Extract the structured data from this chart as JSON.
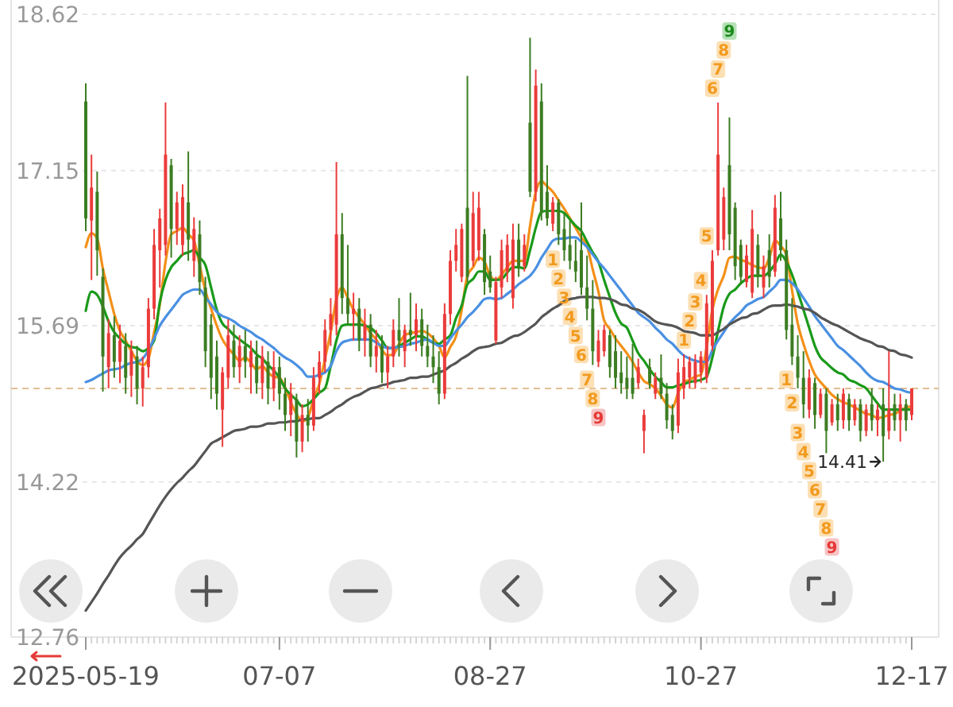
{
  "chart_data": {
    "type": "candlestick",
    "categories": [
      "2025-05-19",
      null,
      null,
      null,
      null,
      null,
      null,
      null,
      null,
      null,
      null,
      null,
      null,
      null,
      null,
      null,
      null,
      null,
      null,
      null,
      null,
      null,
      null,
      null,
      null,
      null,
      null,
      null,
      null,
      null,
      null,
      null,
      null,
      null,
      "07-07",
      null,
      null,
      null,
      null,
      null,
      null,
      null,
      null,
      null,
      null,
      null,
      null,
      null,
      null,
      null,
      null,
      null,
      null,
      null,
      null,
      null,
      null,
      null,
      null,
      null,
      null,
      null,
      null,
      null,
      null,
      null,
      null,
      null,
      null,
      null,
      null,
      "08-27",
      null,
      null,
      null,
      null,
      null,
      null,
      null,
      null,
      null,
      null,
      null,
      null,
      null,
      null,
      null,
      null,
      null,
      null,
      null,
      null,
      null,
      null,
      null,
      null,
      null,
      null,
      null,
      null,
      null,
      null,
      null,
      null,
      null,
      null,
      null,
      null,
      "10-27",
      null,
      null,
      null,
      null,
      null,
      null,
      null,
      null,
      null,
      null,
      null,
      null,
      null,
      null,
      null,
      null,
      null,
      null,
      null,
      null,
      null,
      null,
      null,
      null,
      null,
      null,
      null,
      null,
      null,
      null,
      null,
      null,
      null,
      null,
      null,
      null,
      "12-17"
    ],
    "ohlc": [
      [
        17.8,
        17.97,
        16.58,
        16.7
      ],
      [
        16.68,
        17.3,
        16.12,
        16.99
      ],
      [
        16.95,
        17.14,
        16.16,
        16.4
      ],
      [
        16.15,
        16.23,
        15.07,
        15.4
      ],
      [
        15.3,
        15.75,
        15.1,
        15.62
      ],
      [
        15.6,
        15.78,
        15.2,
        15.35
      ],
      [
        15.35,
        15.7,
        15.15,
        15.55
      ],
      [
        15.5,
        15.62,
        15.05,
        15.2
      ],
      [
        15.22,
        15.55,
        15.02,
        15.45
      ],
      [
        15.4,
        15.5,
        14.95,
        15.1
      ],
      [
        15.1,
        15.4,
        14.93,
        15.3
      ],
      [
        15.3,
        15.95,
        15.2,
        15.85
      ],
      [
        15.85,
        16.6,
        15.75,
        16.45
      ],
      [
        16.4,
        16.79,
        16.05,
        16.7
      ],
      [
        16.45,
        17.79,
        16.35,
        17.3
      ],
      [
        17.2,
        17.26,
        16.33,
        16.6
      ],
      [
        16.6,
        16.95,
        16.45,
        16.85
      ],
      [
        16.45,
        17.02,
        16.35,
        16.9
      ],
      [
        16.85,
        17.33,
        16.3,
        16.5
      ],
      [
        16.3,
        16.71,
        16.15,
        16.6
      ],
      [
        16.55,
        16.68,
        15.98,
        16.1
      ],
      [
        16.05,
        16.15,
        15.3,
        15.45
      ],
      [
        15.7,
        15.8,
        15.0,
        15.2
      ],
      [
        15.4,
        15.55,
        14.9,
        15.05
      ],
      [
        14.9,
        15.3,
        14.55,
        15.25
      ],
      [
        15.2,
        15.75,
        15.1,
        15.6
      ],
      [
        15.55,
        15.7,
        15.2,
        15.3
      ],
      [
        15.3,
        15.6,
        15.15,
        15.5
      ],
      [
        15.5,
        15.65,
        15.2,
        15.35
      ],
      [
        15.3,
        15.55,
        15.05,
        15.45
      ],
      [
        15.4,
        15.55,
        15.05,
        15.15
      ],
      [
        15.15,
        15.5,
        15.0,
        15.4
      ],
      [
        15.35,
        15.45,
        14.95,
        15.1
      ],
      [
        15.1,
        15.45,
        14.98,
        15.3
      ],
      [
        15.3,
        15.4,
        14.9,
        15.05
      ],
      [
        15.05,
        15.2,
        14.7,
        14.85
      ],
      [
        14.85,
        15.15,
        14.65,
        15.05
      ],
      [
        15.0,
        15.05,
        14.45,
        14.6
      ],
      [
        14.6,
        14.95,
        14.5,
        14.85
      ],
      [
        14.85,
        15.0,
        14.6,
        14.75
      ],
      [
        14.75,
        15.3,
        14.7,
        15.2
      ],
      [
        15.2,
        15.45,
        15.05,
        15.35
      ],
      [
        15.35,
        15.75,
        15.25,
        15.65
      ],
      [
        15.65,
        15.95,
        15.5,
        15.8
      ],
      [
        15.7,
        17.23,
        15.6,
        16.55
      ],
      [
        16.55,
        16.75,
        15.8,
        15.95
      ],
      [
        15.95,
        16.45,
        15.7,
        15.8
      ],
      [
        15.8,
        16.0,
        15.55,
        15.85
      ],
      [
        15.85,
        15.95,
        15.45,
        15.55
      ],
      [
        15.55,
        15.85,
        15.4,
        15.7
      ],
      [
        15.7,
        15.8,
        15.3,
        15.4
      ],
      [
        15.4,
        15.65,
        15.25,
        15.5
      ],
      [
        15.5,
        15.6,
        15.15,
        15.25
      ],
      [
        15.25,
        15.5,
        15.1,
        15.4
      ],
      [
        15.4,
        15.75,
        15.3,
        15.65
      ],
      [
        15.65,
        15.95,
        15.4,
        15.55
      ],
      [
        15.45,
        15.7,
        15.3,
        15.65
      ],
      [
        15.65,
        16.0,
        15.5,
        15.6
      ],
      [
        15.6,
        15.9,
        15.45,
        15.75
      ],
      [
        15.75,
        15.85,
        15.4,
        15.5
      ],
      [
        15.5,
        15.7,
        15.3,
        15.4
      ],
      [
        15.4,
        15.6,
        15.15,
        15.3
      ],
      [
        15.3,
        15.45,
        14.95,
        15.05
      ],
      [
        15.05,
        15.9,
        15.0,
        15.8
      ],
      [
        15.8,
        16.4,
        15.7,
        16.3
      ],
      [
        16.3,
        16.6,
        16.2,
        16.45
      ],
      [
        16.15,
        16.65,
        16.1,
        16.6
      ],
      [
        16.8,
        18.04,
        16.1,
        16.15
      ],
      [
        16.3,
        16.95,
        16.25,
        16.75
      ],
      [
        16.4,
        16.95,
        16.3,
        16.8
      ],
      [
        16.55,
        16.6,
        15.98,
        16.1
      ],
      [
        16.2,
        16.35,
        16.0,
        16.05
      ],
      [
        15.55,
        16.15,
        15.52,
        16.1
      ],
      [
        16.05,
        16.5,
        15.95,
        16.4
      ],
      [
        16.2,
        16.55,
        16.1,
        16.45
      ],
      [
        15.95,
        16.65,
        15.85,
        16.5
      ],
      [
        16.5,
        16.65,
        16.15,
        16.25
      ],
      [
        16.25,
        16.55,
        16.2,
        16.45
      ],
      [
        17.6,
        18.4,
        16.9,
        16.95
      ],
      [
        16.95,
        18.1,
        16.86,
        17.95
      ],
      [
        17.8,
        17.97,
        16.68,
        16.75
      ],
      [
        16.95,
        17.2,
        16.63,
        16.7
      ],
      [
        16.65,
        16.9,
        16.58,
        16.85
      ],
      [
        16.85,
        16.88,
        16.45,
        16.55
      ],
      [
        16.6,
        16.75,
        16.3,
        16.4
      ],
      [
        16.45,
        16.68,
        16.22,
        16.3
      ],
      [
        16.3,
        16.5,
        16.1,
        16.2
      ],
      [
        16.4,
        16.85,
        15.98,
        16.05
      ],
      [
        16.05,
        16.35,
        15.74,
        15.85
      ],
      [
        15.85,
        16.12,
        15.32,
        15.45
      ],
      [
        15.35,
        15.65,
        15.3,
        15.55
      ],
      [
        15.45,
        15.7,
        15.4,
        15.65
      ],
      [
        15.6,
        15.65,
        15.2,
        15.3
      ],
      [
        15.45,
        15.6,
        15.1,
        15.2
      ],
      [
        15.25,
        15.45,
        15.05,
        15.15
      ],
      [
        15.2,
        15.4,
        15.0,
        15.1
      ],
      [
        15.2,
        15.52,
        15.0,
        15.05
      ],
      [
        15.15,
        15.38,
        15.1,
        15.3
      ],
      [
        14.7,
        14.9,
        14.49,
        14.85
      ],
      [
        15.3,
        15.38,
        15.1,
        15.15
      ],
      [
        15.05,
        15.25,
        15.0,
        15.2
      ],
      [
        15.2,
        15.42,
        15.0,
        15.05
      ],
      [
        15.05,
        15.15,
        14.72,
        14.8
      ],
      [
        14.85,
        14.95,
        14.62,
        14.7
      ],
      [
        14.75,
        15.38,
        14.68,
        15.25
      ],
      [
        15.1,
        15.42,
        15.0,
        15.3
      ],
      [
        15.2,
        15.4,
        15.1,
        15.35
      ],
      [
        15.15,
        15.42,
        15.1,
        15.35
      ],
      [
        15.25,
        15.45,
        15.15,
        15.4
      ],
      [
        15.2,
        15.98,
        15.15,
        15.9
      ],
      [
        15.5,
        16.4,
        15.45,
        16.3
      ],
      [
        16.4,
        17.79,
        16.35,
        17.3
      ],
      [
        16.5,
        16.99,
        16.4,
        16.9
      ],
      [
        17.2,
        17.65,
        16.4,
        16.55
      ],
      [
        16.8,
        16.85,
        16.12,
        16.25
      ],
      [
        16.45,
        16.5,
        16.08,
        16.15
      ],
      [
        16.1,
        16.45,
        16.05,
        16.35
      ],
      [
        16.0,
        16.78,
        15.95,
        16.6
      ],
      [
        16.45,
        16.55,
        16.05,
        16.15
      ],
      [
        16.05,
        16.35,
        15.95,
        16.25
      ],
      [
        16.4,
        16.55,
        16.05,
        16.15
      ],
      [
        16.2,
        16.92,
        16.15,
        16.8
      ],
      [
        16.7,
        16.95,
        16.3,
        16.4
      ],
      [
        16.4,
        16.5,
        15.56,
        15.65
      ],
      [
        15.7,
        15.95,
        15.32,
        15.4
      ],
      [
        15.4,
        15.6,
        15.1,
        15.2
      ],
      [
        15.2,
        15.45,
        14.82,
        14.95
      ],
      [
        14.9,
        15.28,
        14.82,
        15.2
      ],
      [
        15.15,
        15.2,
        14.72,
        14.85
      ],
      [
        14.85,
        15.1,
        14.82,
        15.05
      ],
      [
        15.05,
        15.1,
        14.49,
        14.7
      ],
      [
        14.78,
        15.0,
        14.75,
        14.95
      ],
      [
        14.95,
        15.05,
        14.7,
        14.8
      ],
      [
        14.8,
        15.1,
        14.72,
        15.05
      ],
      [
        15.0,
        15.05,
        14.7,
        14.8
      ],
      [
        14.8,
        15.0,
        14.75,
        14.95
      ],
      [
        14.95,
        15.0,
        14.6,
        14.7
      ],
      [
        14.7,
        14.95,
        14.65,
        14.9
      ],
      [
        14.95,
        15.1,
        14.7,
        14.8
      ],
      [
        14.8,
        14.95,
        14.65,
        14.9
      ],
      [
        14.95,
        15.1,
        14.41,
        14.65
      ],
      [
        14.7,
        15.45,
        14.62,
        14.9
      ],
      [
        14.95,
        15.05,
        14.7,
        14.8
      ],
      [
        14.8,
        15.05,
        14.6,
        14.95
      ],
      [
        14.95,
        15.0,
        14.7,
        14.8
      ],
      [
        14.85,
        15.1,
        14.8,
        15.1
      ]
    ],
    "colors": [
      "#3c7d22",
      "#eb3b3b",
      "#3c7d22",
      "#3c7d22",
      "#eb3b3b",
      "#3c7d22",
      "#eb3b3b",
      "#3c7d22",
      "#eb3b3b",
      "#3c7d22",
      "#eb3b3b",
      "#eb3b3b",
      "#eb3b3b",
      "#eb3b3b",
      "#eb3b3b",
      "#3c7d22",
      "#eb3b3b",
      "#eb3b3b",
      "#3c7d22",
      "#eb3b3b",
      "#3c7d22",
      "#3c7d22",
      "#3c7d22",
      "#3c7d22",
      "#eb3b3b",
      "#eb3b3b",
      "#3c7d22",
      "#eb3b3b",
      "#3c7d22",
      "#eb3b3b",
      "#3c7d22",
      "#eb3b3b",
      "#3c7d22",
      "#eb3b3b",
      "#3c7d22",
      "#3c7d22",
      "#eb3b3b",
      "#3c7d22",
      "#eb3b3b",
      "#3c7d22",
      "#eb3b3b",
      "#eb3b3b",
      "#eb3b3b",
      "#eb3b3b",
      "#eb3b3b",
      "#3c7d22",
      "#3c7d22",
      "#eb3b3b",
      "#3c7d22",
      "#eb3b3b",
      "#3c7d22",
      "#eb3b3b",
      "#3c7d22",
      "#eb3b3b",
      "#eb3b3b",
      "#3c7d22",
      "#eb3b3b",
      "#3c7d22",
      "#eb3b3b",
      "#3c7d22",
      "#3c7d22",
      "#3c7d22",
      "#3c7d22",
      "#eb3b3b",
      "#eb3b3b",
      "#eb3b3b",
      "#eb3b3b",
      "#3c7d22",
      "#eb3b3b",
      "#eb3b3b",
      "#3c7d22",
      "#3c7d22",
      "#eb3b3b",
      "#eb3b3b",
      "#eb3b3b",
      "#eb3b3b",
      "#3c7d22",
      "#eb3b3b",
      "#3c7d22",
      "#eb3b3b",
      "#3c7d22",
      "#3c7d22",
      "#eb3b3b",
      "#3c7d22",
      "#3c7d22",
      "#3c7d22",
      "#3c7d22",
      "#3c7d22",
      "#3c7d22",
      "#3c7d22",
      "#eb3b3b",
      "#eb3b3b",
      "#3c7d22",
      "#3c7d22",
      "#3c7d22",
      "#3c7d22",
      "#3c7d22",
      "#eb3b3b",
      "#eb3b3b",
      "#3c7d22",
      "#eb3b3b",
      "#3c7d22",
      "#3c7d22",
      "#3c7d22",
      "#eb3b3b",
      "#eb3b3b",
      "#eb3b3b",
      "#eb3b3b",
      "#eb3b3b",
      "#eb3b3b",
      "#eb3b3b",
      "#eb3b3b",
      "#eb3b3b",
      "#3c7d22",
      "#3c7d22",
      "#3c7d22",
      "#eb3b3b",
      "#eb3b3b",
      "#3c7d22",
      "#eb3b3b",
      "#3c7d22",
      "#eb3b3b",
      "#3c7d22",
      "#3c7d22",
      "#3c7d22",
      "#3c7d22",
      "#3c7d22",
      "#eb3b3b",
      "#3c7d22",
      "#eb3b3b",
      "#3c7d22",
      "#eb3b3b",
      "#3c7d22",
      "#eb3b3b",
      "#3c7d22",
      "#eb3b3b",
      "#3c7d22",
      "#eb3b3b",
      "#3c7d22",
      "#eb3b3b",
      "#3c7d22",
      "#eb3b3b",
      "#3c7d22",
      "#eb3b3b",
      "#3c7d22",
      "#eb3b3b"
    ],
    "value_labels": [
      null,
      null,
      null,
      null,
      null,
      null,
      null,
      null,
      null,
      null,
      null,
      null,
      null,
      null,
      null,
      null,
      null,
      null,
      null,
      null,
      null,
      null,
      null,
      null,
      null,
      null,
      null,
      null,
      null,
      null,
      null,
      null,
      null,
      null,
      null,
      null,
      null,
      null,
      null,
      null,
      null,
      null,
      null,
      null,
      null,
      null,
      null,
      null,
      null,
      null,
      null,
      null,
      null,
      null,
      null,
      null,
      null,
      null,
      null,
      null,
      null,
      null,
      null,
      null,
      null,
      null,
      null,
      null,
      null,
      null,
      null,
      null,
      null,
      null,
      null,
      null,
      null,
      null,
      null,
      null,
      null,
      null,
      "1",
      "2",
      "3",
      "4",
      "5",
      "6",
      "7",
      "8",
      "9",
      null,
      null,
      null,
      null,
      null,
      null,
      null,
      null,
      null,
      null,
      null,
      null,
      null,
      null,
      "1",
      "2",
      "3",
      "4",
      "5",
      "6",
      "7",
      "8",
      "9",
      null,
      null,
      null,
      null,
      null,
      null,
      null,
      null,
      null,
      "1",
      "2",
      "3",
      "4",
      "5",
      "6",
      "7",
      "8",
      "9",
      null,
      null,
      null,
      null,
      null,
      null,
      null,
      null,
      null,
      null,
      null,
      null,
      null,
      null
    ],
    "series": [
      {
        "type": "line",
        "color": "#f39019",
        "values": [
          16.43,
          16.56,
          16.51,
          16.23,
          16.01,
          15.8,
          15.64,
          15.55,
          15.45,
          15.36,
          15.32,
          15.38,
          15.63,
          15.89,
          16.29,
          16.55,
          16.58,
          16.61,
          16.55,
          16.49,
          16.26,
          16.02,
          15.85,
          15.69,
          15.56,
          15.48,
          15.42,
          15.36,
          15.39,
          15.34,
          15.28,
          15.31,
          15.25,
          15.21,
          15.2,
          15.11,
          14.97,
          14.86,
          14.79,
          14.83,
          15.0,
          15.14,
          15.38,
          15.63,
          15.94,
          16.05,
          15.95,
          15.84,
          15.77,
          15.7,
          15.62,
          15.56,
          15.46,
          15.41,
          15.42,
          15.52,
          15.6,
          15.62,
          15.63,
          15.64,
          15.62,
          15.57,
          15.5,
          15.39,
          15.49,
          15.59,
          15.84,
          16.16,
          16.24,
          16.33,
          16.29,
          16.16,
          16.12,
          16.17,
          16.24,
          16.3,
          16.3,
          16.3,
          16.63,
          16.95,
          17.05,
          17.0,
          16.95,
          16.87,
          16.79,
          16.7,
          16.61,
          16.52,
          16.44,
          16.22,
          16.01,
          15.74,
          15.66,
          15.57,
          15.5,
          15.43,
          15.35,
          15.25,
          15.17,
          15.14,
          15.1,
          15.03,
          14.95,
          14.92,
          15.06,
          15.16,
          15.18,
          15.21,
          15.23,
          15.49,
          15.84,
          16.03,
          16.16,
          16.33,
          16.34,
          16.31,
          16.29,
          16.26,
          16.24,
          16.23,
          16.33,
          16.49,
          16.44,
          16.36,
          16.02,
          15.71,
          15.52,
          15.36,
          15.23,
          15.16,
          15.1,
          15.04,
          15.0,
          14.97,
          14.95,
          14.92,
          14.89,
          14.86,
          14.85,
          14.82,
          14.83,
          14.85,
          14.86,
          14.89,
          14.92,
          14.93
        ]
      },
      {
        "type": "line",
        "color": "#1a9a1a",
        "values": [
          15.83,
          16.01,
          15.98,
          15.87,
          15.73,
          15.63,
          15.57,
          15.52,
          15.49,
          15.48,
          15.45,
          15.48,
          15.55,
          15.91,
          16.12,
          16.24,
          16.3,
          16.36,
          16.38,
          16.4,
          16.33,
          16.26,
          16.05,
          15.84,
          15.71,
          15.66,
          15.6,
          15.56,
          15.52,
          15.48,
          15.42,
          15.38,
          15.32,
          15.27,
          15.2,
          15.1,
          15.04,
          14.99,
          14.93,
          14.95,
          15.0,
          15.06,
          15.1,
          15.31,
          15.55,
          15.69,
          15.7,
          15.7,
          15.7,
          15.69,
          15.67,
          15.62,
          15.55,
          15.48,
          15.48,
          15.5,
          15.53,
          15.56,
          15.59,
          15.59,
          15.56,
          15.53,
          15.52,
          15.56,
          15.6,
          15.76,
          15.88,
          16.08,
          16.13,
          16.2,
          16.2,
          16.12,
          16.12,
          16.13,
          16.19,
          16.24,
          16.24,
          16.23,
          16.4,
          16.61,
          16.76,
          16.77,
          16.77,
          16.77,
          16.75,
          16.69,
          16.63,
          16.58,
          16.48,
          16.38,
          16.29,
          16.12,
          15.96,
          15.81,
          15.71,
          15.67,
          15.55,
          15.43,
          15.36,
          15.28,
          15.21,
          15.16,
          15.11,
          15.11,
          15.13,
          15.14,
          15.16,
          15.17,
          15.18,
          15.21,
          15.39,
          15.64,
          15.87,
          15.99,
          16.03,
          16.09,
          16.13,
          16.16,
          16.16,
          16.16,
          16.2,
          16.27,
          16.36,
          16.29,
          16.17,
          16.01,
          15.84,
          15.67,
          15.5,
          15.39,
          15.34,
          15.29,
          15.25,
          15.23,
          15.18,
          15.16,
          15.13,
          15.1,
          15.03,
          14.96,
          14.9,
          14.9,
          14.9,
          14.9,
          14.9,
          14.9
        ]
      },
      {
        "type": "line",
        "color": "#4a90e2",
        "values": [
          15.16,
          15.18,
          15.21,
          15.24,
          15.27,
          15.28,
          15.29,
          15.32,
          15.34,
          15.35,
          15.38,
          15.46,
          15.57,
          15.69,
          15.77,
          15.84,
          15.91,
          15.98,
          16.01,
          16.03,
          16.03,
          15.96,
          15.89,
          15.82,
          15.78,
          15.76,
          15.73,
          15.69,
          15.66,
          15.63,
          15.59,
          15.56,
          15.52,
          15.48,
          15.43,
          15.39,
          15.36,
          15.32,
          15.27,
          15.21,
          15.21,
          15.23,
          15.25,
          15.31,
          15.45,
          15.53,
          15.55,
          15.56,
          15.56,
          15.56,
          15.56,
          15.53,
          15.5,
          15.48,
          15.48,
          15.49,
          15.5,
          15.52,
          15.53,
          15.55,
          15.56,
          15.53,
          15.5,
          15.5,
          15.57,
          15.64,
          15.7,
          15.77,
          15.82,
          15.88,
          15.94,
          15.95,
          15.94,
          15.95,
          15.99,
          16.03,
          16.08,
          16.12,
          16.16,
          16.23,
          16.33,
          16.41,
          16.49,
          16.51,
          16.51,
          16.52,
          16.52,
          16.48,
          16.43,
          16.36,
          16.29,
          16.23,
          16.16,
          16.09,
          16.02,
          15.95,
          15.88,
          15.81,
          15.77,
          15.73,
          15.67,
          15.62,
          15.56,
          15.52,
          15.46,
          15.41,
          15.38,
          15.36,
          15.35,
          15.35,
          15.46,
          15.55,
          15.63,
          15.71,
          15.77,
          15.82,
          15.88,
          15.91,
          15.94,
          15.96,
          16.01,
          16.06,
          16.12,
          16.12,
          16.09,
          16.03,
          15.95,
          15.87,
          15.78,
          15.71,
          15.64,
          15.57,
          15.5,
          15.46,
          15.41,
          15.36,
          15.31,
          15.25,
          15.2,
          15.17,
          15.16,
          15.13,
          15.1,
          15.09,
          15.07,
          15.06
        ]
      },
      {
        "type": "line",
        "color": "#555555",
        "values": [
          13.01,
          13.09,
          13.17,
          13.26,
          13.34,
          13.43,
          13.51,
          13.57,
          13.62,
          13.68,
          13.73,
          13.82,
          13.91,
          14.0,
          14.08,
          14.15,
          14.21,
          14.26,
          14.32,
          14.37,
          14.44,
          14.51,
          14.58,
          14.61,
          14.64,
          14.67,
          14.7,
          14.71,
          14.72,
          14.74,
          14.74,
          14.75,
          14.77,
          14.77,
          14.78,
          14.78,
          14.79,
          14.79,
          14.81,
          14.81,
          14.82,
          14.82,
          14.85,
          14.88,
          14.92,
          14.95,
          14.99,
          15.02,
          15.04,
          15.07,
          15.1,
          15.11,
          15.13,
          15.14,
          15.16,
          15.17,
          15.18,
          15.2,
          15.2,
          15.21,
          15.21,
          15.23,
          15.25,
          15.27,
          15.31,
          15.34,
          15.38,
          15.41,
          15.45,
          15.48,
          15.49,
          15.5,
          15.52,
          15.53,
          15.56,
          15.59,
          15.6,
          15.63,
          15.67,
          15.71,
          15.77,
          15.81,
          15.85,
          15.88,
          15.92,
          15.94,
          15.95,
          15.96,
          15.96,
          15.96,
          15.95,
          15.95,
          15.94,
          15.92,
          15.89,
          15.88,
          15.85,
          15.84,
          15.81,
          15.77,
          15.73,
          15.71,
          15.7,
          15.69,
          15.67,
          15.64,
          15.63,
          15.62,
          15.6,
          15.6,
          15.6,
          15.63,
          15.66,
          15.7,
          15.73,
          15.76,
          15.77,
          15.8,
          15.81,
          15.84,
          15.87,
          15.88,
          15.88,
          15.89,
          15.88,
          15.87,
          15.85,
          15.84,
          15.81,
          15.77,
          15.74,
          15.71,
          15.69,
          15.66,
          15.63,
          15.6,
          15.57,
          15.55,
          15.53,
          15.5,
          15.49,
          15.46,
          15.45,
          15.42,
          15.41,
          15.39
        ]
      }
    ],
    "ylim": [
      12.76,
      18.62
    ],
    "yticks": [
      12.76,
      14.22,
      15.69,
      17.15,
      18.62
    ],
    "grid": "y",
    "ref_lines": [
      {
        "axis": "y",
        "value": 15.1,
        "color": "#e2bf94",
        "line_style": "dashed"
      }
    ],
    "annotations": [
      "14.41"
    ]
  }
}
